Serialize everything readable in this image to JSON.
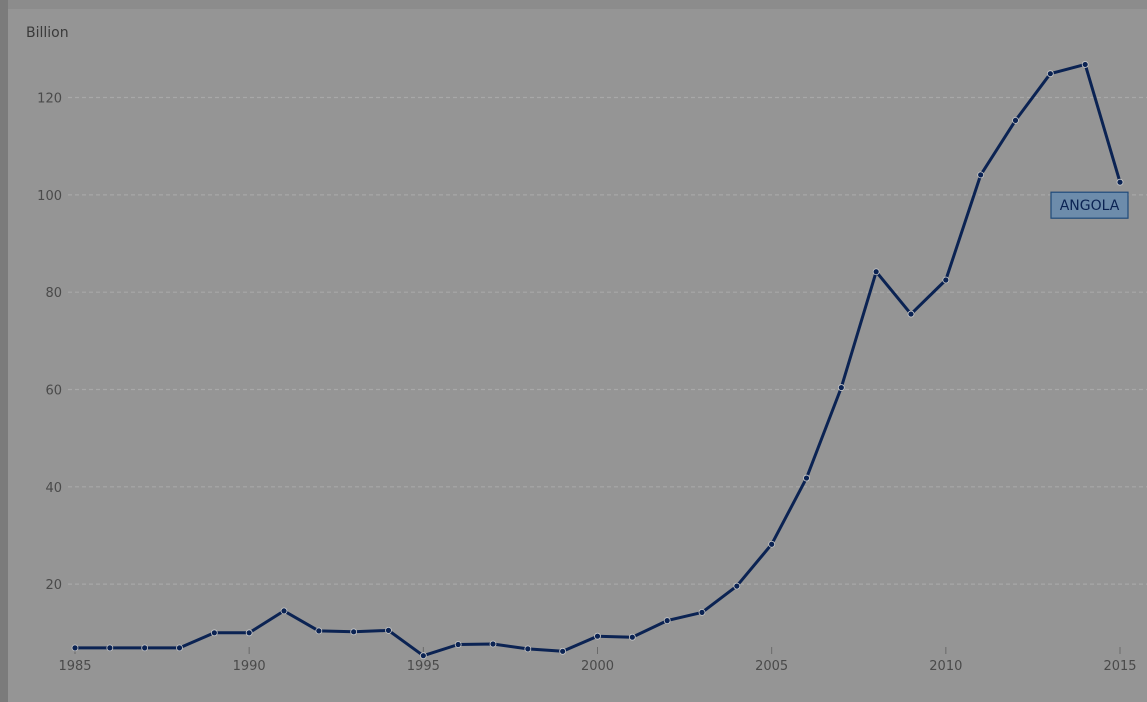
{
  "chart_data": {
    "type": "line",
    "ylabel": "Billion",
    "x": [
      1985,
      1986,
      1987,
      1988,
      1989,
      1990,
      1991,
      1992,
      1993,
      1994,
      1995,
      1996,
      1997,
      1998,
      1999,
      2000,
      2001,
      2002,
      2003,
      2004,
      2005,
      2006,
      2007,
      2008,
      2009,
      2010,
      2011,
      2012,
      2013,
      2014,
      2015
    ],
    "x_ticks": [
      "1985",
      "1990",
      "1995",
      "2000",
      "2005",
      "2010",
      "2015"
    ],
    "y_ticks": [
      "20",
      "40",
      "60",
      "80",
      "100",
      "120"
    ],
    "xlim": [
      1985,
      2015
    ],
    "ylim": [
      4,
      131
    ],
    "grid": "horizontal dashed",
    "series": [
      {
        "name": "ANGOLA",
        "color": "#0b2353",
        "values": [
          6.9,
          6.9,
          6.9,
          6.9,
          10.0,
          10.0,
          14.5,
          10.4,
          10.2,
          10.5,
          5.3,
          7.6,
          7.7,
          6.7,
          6.2,
          9.3,
          9.1,
          12.5,
          14.2,
          19.6,
          28.2,
          41.8,
          60.4,
          84.2,
          75.5,
          82.5,
          104.1,
          115.3,
          124.9,
          126.8,
          102.6
        ]
      }
    ],
    "annotations": [
      {
        "text": "ANGOLA",
        "series": 0,
        "at": 2015
      }
    ]
  },
  "colors": {
    "background": "#959595",
    "line": "#0b2353",
    "grid": "#a8a8a8",
    "tick_text": "#4a4a4a",
    "label_box_fill": "#6d8cab",
    "label_box_stroke": "#1f4a7a",
    "label_text": "#0b2353"
  }
}
